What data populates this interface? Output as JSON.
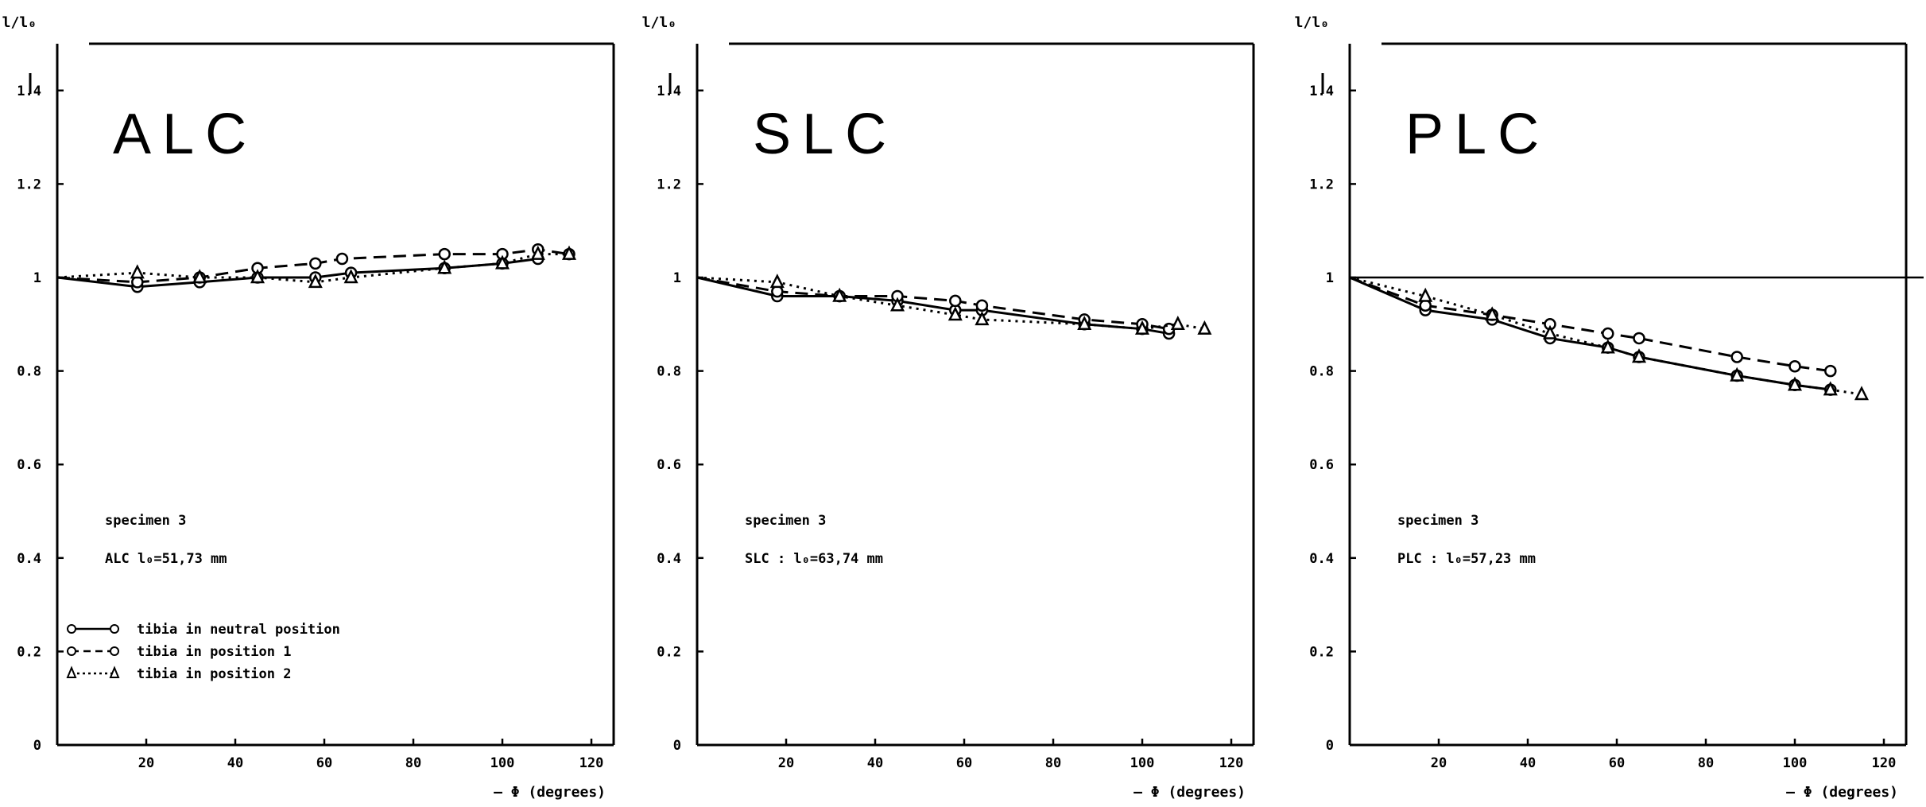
{
  "chart_data": [
    {
      "type": "line",
      "title": "ALC",
      "ylabel": "l/l₀",
      "xlabel": "Φ (degrees)",
      "xlim": [
        0,
        125
      ],
      "ylim": [
        0,
        1.5
      ],
      "xticks": [
        "20",
        "40",
        "60",
        "80",
        "100",
        "120"
      ],
      "yticks": [
        "0",
        "0.2",
        "0.4",
        "0.6",
        "0.8",
        "1",
        "1.2",
        "1.4"
      ],
      "annotation": [
        "specimen 3",
        "ALC  l₀=51,73 mm"
      ],
      "legend": [
        "tibia in neutral position",
        "tibia in position 1",
        "tibia in position 2"
      ],
      "series": [
        {
          "style": "solid-circle",
          "x": [
            0,
            18,
            32,
            45,
            58,
            66,
            87,
            100,
            108
          ],
          "y": [
            1.0,
            0.98,
            0.99,
            1.0,
            1.0,
            1.01,
            1.02,
            1.03,
            1.04
          ]
        },
        {
          "style": "dashed-circle",
          "x": [
            0,
            18,
            32,
            45,
            58,
            64,
            87,
            100,
            108,
            115
          ],
          "y": [
            1.0,
            0.99,
            1.0,
            1.02,
            1.03,
            1.04,
            1.05,
            1.05,
            1.06,
            1.05
          ]
        },
        {
          "style": "dotted-triangle",
          "x": [
            0,
            18,
            32,
            45,
            58,
            66,
            87,
            100,
            108,
            115
          ],
          "y": [
            1.0,
            1.01,
            1.0,
            1.0,
            0.99,
            1.0,
            1.02,
            1.03,
            1.05,
            1.05
          ]
        }
      ]
    },
    {
      "type": "line",
      "title": "SLC",
      "ylabel": "l/l₀",
      "xlabel": "Φ (degrees)",
      "xlim": [
        0,
        125
      ],
      "ylim": [
        0,
        1.5
      ],
      "xticks": [
        "20",
        "40",
        "60",
        "80",
        "100",
        "120"
      ],
      "yticks": [
        "0",
        "0.2",
        "0.4",
        "0.6",
        "0.8",
        "1",
        "1.2",
        "1.4"
      ],
      "annotation": [
        "specimen 3",
        "SLC : l₀=63,74 mm"
      ],
      "series": [
        {
          "style": "solid-circle",
          "x": [
            0,
            18,
            32,
            45,
            58,
            64,
            87,
            100,
            106
          ],
          "y": [
            1.0,
            0.96,
            0.96,
            0.95,
            0.93,
            0.93,
            0.9,
            0.89,
            0.88
          ]
        },
        {
          "style": "dashed-circle",
          "x": [
            0,
            18,
            32,
            45,
            58,
            64,
            87,
            100,
            106
          ],
          "y": [
            1.0,
            0.97,
            0.96,
            0.96,
            0.95,
            0.94,
            0.91,
            0.9,
            0.89
          ]
        },
        {
          "style": "dotted-triangle",
          "x": [
            0,
            18,
            32,
            45,
            58,
            64,
            87,
            100,
            108,
            114
          ],
          "y": [
            1.0,
            0.99,
            0.96,
            0.94,
            0.92,
            0.91,
            0.9,
            0.89,
            0.9,
            0.89
          ]
        }
      ]
    },
    {
      "type": "line",
      "title": "PLC",
      "ylabel": "l/l₀",
      "xlabel": "Φ (degrees)",
      "xlim": [
        0,
        125
      ],
      "ylim": [
        0,
        1.5
      ],
      "xticks": [
        "20",
        "40",
        "60",
        "80",
        "100",
        "120"
      ],
      "yticks": [
        "0",
        "0.2",
        "0.4",
        "0.6",
        "0.8",
        "1",
        "1.2",
        "1.4"
      ],
      "annotation": [
        "specimen 3",
        "PLC : l₀=57,23 mm"
      ],
      "series": [
        {
          "style": "solid-circle",
          "x": [
            0,
            17,
            32,
            45,
            58,
            65,
            87,
            100,
            108
          ],
          "y": [
            1.0,
            0.93,
            0.91,
            0.87,
            0.85,
            0.83,
            0.79,
            0.77,
            0.76
          ]
        },
        {
          "style": "dashed-circle",
          "x": [
            0,
            17,
            32,
            45,
            58,
            65,
            87,
            100,
            108
          ],
          "y": [
            1.0,
            0.94,
            0.92,
            0.9,
            0.88,
            0.87,
            0.83,
            0.81,
            0.8
          ]
        },
        {
          "style": "dotted-triangle",
          "x": [
            0,
            17,
            32,
            45,
            58,
            65,
            87,
            100,
            108,
            115
          ],
          "y": [
            1.0,
            0.96,
            0.92,
            0.88,
            0.85,
            0.83,
            0.79,
            0.77,
            0.76,
            0.75
          ]
        }
      ]
    }
  ]
}
